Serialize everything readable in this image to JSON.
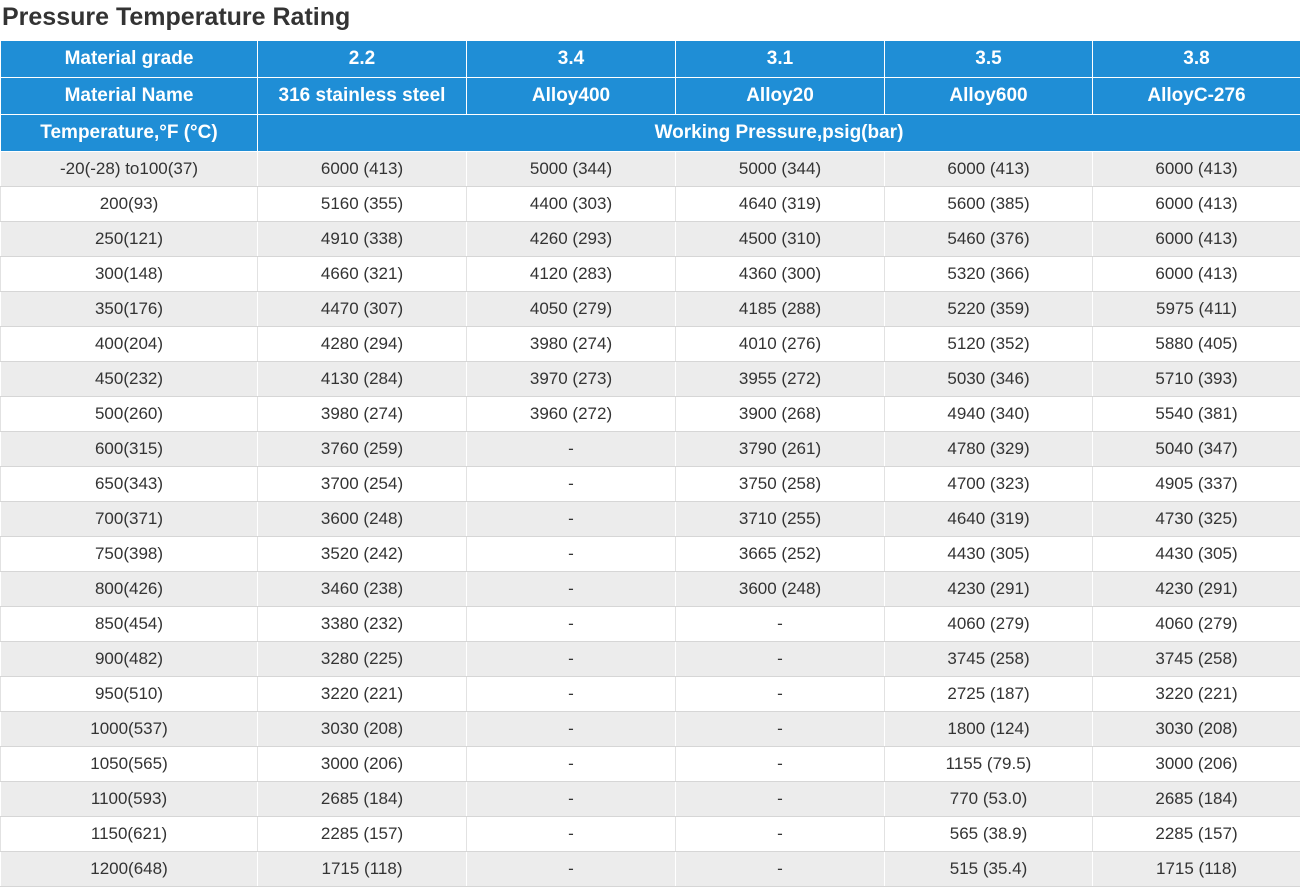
{
  "title": "Pressure Temperature Rating",
  "header": {
    "grade_label": "Material grade",
    "grades": [
      "2.2",
      "3.4",
      "3.1",
      "3.5",
      "3.8"
    ],
    "name_label": "Material Name",
    "names": [
      "316 stainless steel",
      "Alloy400",
      "Alloy20",
      "Alloy600",
      "AlloyC-276"
    ],
    "temp_label": "Temperature,°F (°C)",
    "pressure_label": "Working Pressure,psig(bar)"
  },
  "rows": [
    [
      "-20(-28) to100(37)",
      "6000 (413)",
      "5000 (344)",
      "5000 (344)",
      "6000 (413)",
      "6000 (413)"
    ],
    [
      "200(93)",
      "5160 (355)",
      "4400 (303)",
      "4640 (319)",
      "5600 (385)",
      "6000 (413)"
    ],
    [
      "250(121)",
      "4910 (338)",
      "4260 (293)",
      "4500 (310)",
      "5460 (376)",
      "6000 (413)"
    ],
    [
      "300(148)",
      "4660 (321)",
      "4120 (283)",
      "4360 (300)",
      "5320 (366)",
      "6000 (413)"
    ],
    [
      "350(176)",
      "4470 (307)",
      "4050 (279)",
      "4185 (288)",
      "5220 (359)",
      "5975 (411)"
    ],
    [
      "400(204)",
      "4280 (294)",
      "3980 (274)",
      "4010 (276)",
      "5120 (352)",
      "5880 (405)"
    ],
    [
      "450(232)",
      "4130 (284)",
      "3970 (273)",
      "3955 (272)",
      "5030 (346)",
      "5710 (393)"
    ],
    [
      "500(260)",
      "3980 (274)",
      "3960 (272)",
      "3900 (268)",
      "4940 (340)",
      "5540 (381)"
    ],
    [
      "600(315)",
      "3760 (259)",
      "-",
      "3790 (261)",
      "4780 (329)",
      "5040 (347)"
    ],
    [
      "650(343)",
      "3700 (254)",
      "-",
      "3750 (258)",
      "4700 (323)",
      "4905 (337)"
    ],
    [
      "700(371)",
      "3600 (248)",
      "-",
      "3710 (255)",
      "4640 (319)",
      "4730 (325)"
    ],
    [
      "750(398)",
      "3520 (242)",
      "-",
      "3665 (252)",
      "4430 (305)",
      "4430 (305)"
    ],
    [
      "800(426)",
      "3460 (238)",
      "-",
      "3600 (248)",
      "4230 (291)",
      "4230 (291)"
    ],
    [
      "850(454)",
      "3380 (232)",
      "-",
      "-",
      "4060 (279)",
      "4060 (279)"
    ],
    [
      "900(482)",
      "3280 (225)",
      "-",
      "-",
      "3745 (258)",
      "3745 (258)"
    ],
    [
      "950(510)",
      "3220 (221)",
      "-",
      "-",
      "2725 (187)",
      "3220 (221)"
    ],
    [
      "1000(537)",
      "3030 (208)",
      "-",
      "-",
      "1800 (124)",
      "3030 (208)"
    ],
    [
      "1050(565)",
      "3000 (206)",
      "-",
      "-",
      "1155 (79.5)",
      "3000 (206)"
    ],
    [
      "1100(593)",
      "2685 (184)",
      "-",
      "-",
      "770 (53.0)",
      "2685 (184)"
    ],
    [
      "1150(621)",
      "2285 (157)",
      "-",
      "-",
      "565 (38.9)",
      "2285 (157)"
    ],
    [
      "1200(648)",
      "1715 (118)",
      "-",
      "-",
      "515 (35.4)",
      "1715 (118)"
    ]
  ]
}
